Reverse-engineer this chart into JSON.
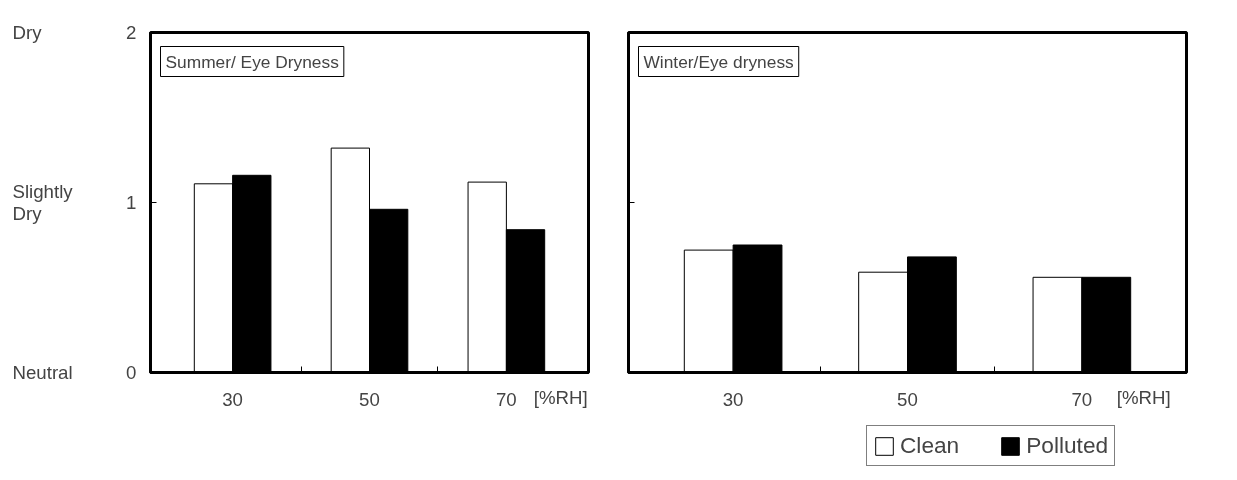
{
  "chart_data": [
    {
      "type": "bar",
      "title": "Summer/ Eye Dryness",
      "xlabel": "[%RH]",
      "categories": [
        "30",
        "50",
        "70"
      ],
      "series": [
        {
          "color": "#ffffff",
          "values": [
            1.11,
            1.32,
            1.12
          ]
        },
        {
          "color": "#000000",
          "values": [
            1.16,
            0.96,
            0.84
          ]
        }
      ],
      "ylim": [
        0,
        2
      ],
      "yticks": [
        0,
        1,
        2
      ],
      "annotations": [
        "Neutral",
        "Slightly\nDry",
        "Dry"
      ]
    },
    {
      "type": "bar",
      "title": "Winter/Eye dryness",
      "xlabel": "[%RH]",
      "categories": [
        "30",
        "50",
        "70"
      ],
      "series": [
        {
          "name": "Clean",
          "color": "#ffffff",
          "values": [
            0.72,
            0.59,
            0.56
          ]
        },
        {
          "name": "Polluted",
          "color": "#000000",
          "values": [
            0.75,
            0.68,
            0.56
          ]
        }
      ],
      "ylim": [
        0,
        2
      ],
      "yticks": [
        0,
        1,
        2
      ],
      "tick_labels": "x",
      "legend": "bottom right"
    }
  ]
}
